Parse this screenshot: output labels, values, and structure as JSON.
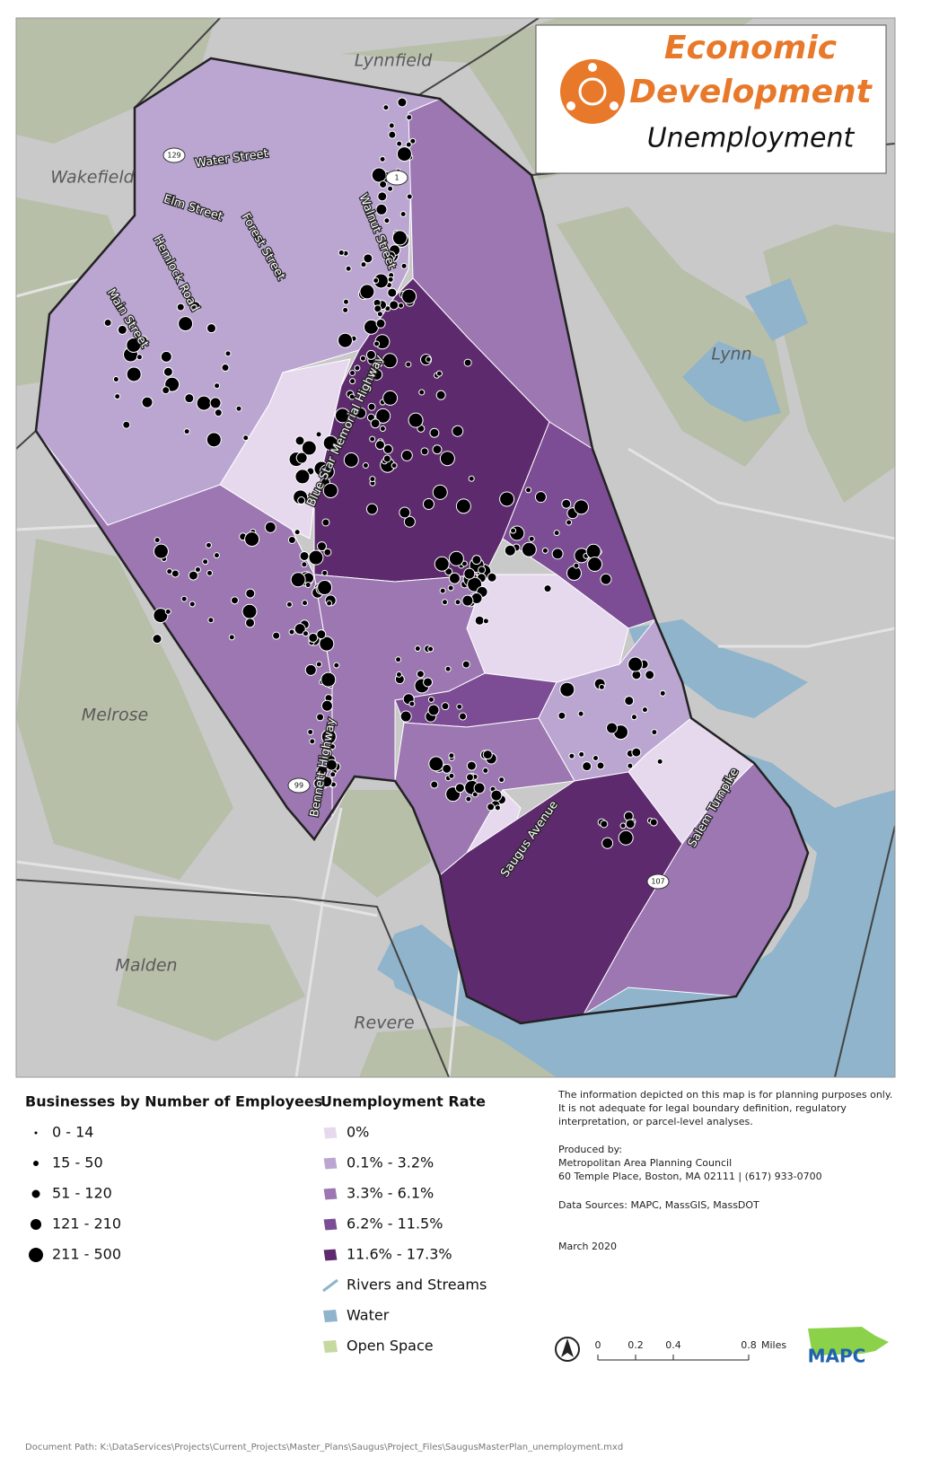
{
  "title_box": {
    "line1": "Economic",
    "line2": "Development",
    "subtitle": "Unemployment"
  },
  "places": [
    "Lynnfield",
    "Wakefield",
    "Lynn",
    "Melrose",
    "Malden",
    "Revere"
  ],
  "streets": [
    "Water Street",
    "Elm Street",
    "Forest Street",
    "Hemlock Road",
    "Main Street",
    "Walnut Street",
    "Blue Star Memorial Highway",
    "Bennett Highway",
    "Saugus Avenue",
    "Salem Turnpike"
  ],
  "routes": [
    "129",
    "1",
    "99",
    "107"
  ],
  "legend": {
    "businesses": {
      "title": "Businesses by Number of Employees",
      "items": [
        "0 - 14",
        "15 - 50",
        "51 - 120",
        "121 - 210",
        "211 - 500"
      ]
    },
    "unemployment": {
      "title": "Unemployment Rate",
      "items": [
        "0%",
        "0.1% - 3.2%",
        "3.3% - 6.1%",
        "6.2% - 11.5%",
        "11.6% - 17.3%",
        "Rivers and Streams",
        "Water",
        "Open Space"
      ]
    }
  },
  "notes": {
    "disclaimer": [
      "The information depicted on this map is for planning purposes only.",
      "It is not adequate for legal boundary definition, regulatory",
      "interpretation, or parcel-level analyses."
    ],
    "produced_by": [
      "Produced by:",
      "Metropolitan Area Planning Council",
      "60 Temple Place, Boston, MA 02111 | (617) 933-0700"
    ],
    "data_sources": "Data Sources: MAPC, MassGIS, MassDOT",
    "date": "March 2020"
  },
  "scale": {
    "ticks": [
      "0",
      "0.2",
      "0.4",
      "0.8"
    ],
    "unit": "Miles"
  },
  "logo": "MAPC",
  "document_path": "Document Path: K:\\DataServices\\Projects\\Current_Projects\\Master_Plans\\Saugus\\Project_Files\\SaugusMasterPlan_unemployment.mxd"
}
